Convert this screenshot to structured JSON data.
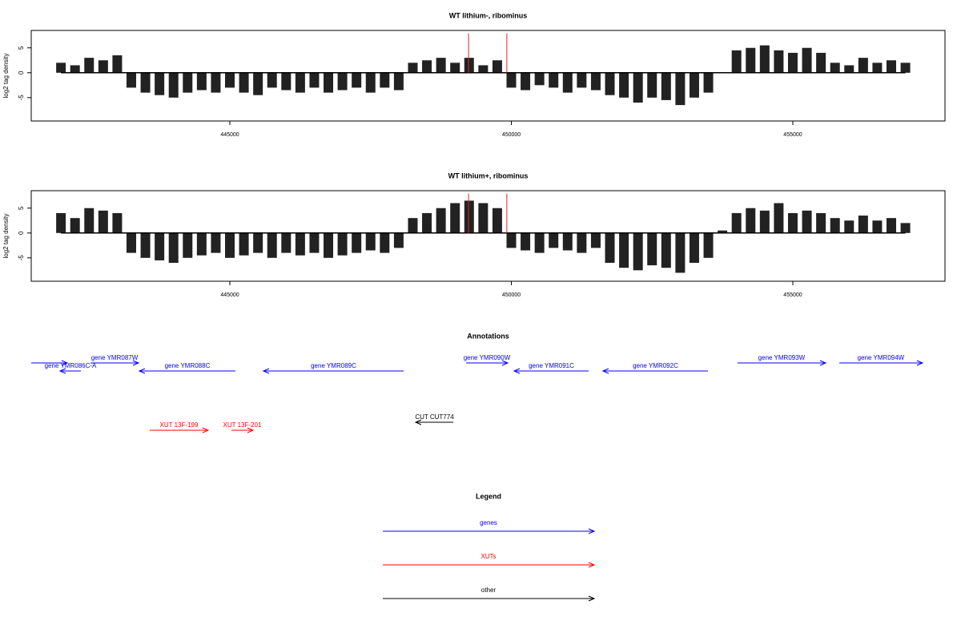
{
  "chart_data": [
    {
      "type": "bar",
      "title": "WT lithium-, ribominus",
      "ylabel": "log2 tag density",
      "x": [
        442000,
        442250,
        442500,
        442750,
        443000,
        443250,
        443500,
        443750,
        444000,
        444250,
        444500,
        444750,
        445000,
        445250,
        445500,
        445750,
        446000,
        446250,
        446500,
        446750,
        447000,
        447250,
        447500,
        447750,
        448000,
        448250,
        448500,
        448750,
        449000,
        449250,
        449500,
        449750,
        450000,
        450250,
        450500,
        450750,
        451000,
        451250,
        451500,
        451750,
        452000,
        452250,
        452500,
        452750,
        453000,
        453250,
        453500,
        453750,
        454000,
        454250,
        454500,
        454750,
        455000,
        455250,
        455500,
        455750,
        456000,
        456250,
        456500,
        456750,
        457000
      ],
      "values": [
        2,
        1.5,
        3,
        2.5,
        3.5,
        -3,
        -4,
        -4.5,
        -5,
        -4,
        -3.5,
        -4,
        -3,
        -4,
        -4.5,
        -3,
        -3.5,
        -4,
        -3,
        -4,
        -3.5,
        -3,
        -4,
        -3,
        -3.5,
        2,
        2.5,
        3,
        2,
        3,
        1.5,
        2.5,
        -3,
        -3.5,
        -2.5,
        -3,
        -4,
        -3,
        -3.5,
        -4.5,
        -5,
        -6,
        -5,
        -5.5,
        -6.5,
        -5,
        -4,
        0,
        4.5,
        5,
        5.5,
        4.5,
        4,
        5,
        4,
        2,
        1.5,
        3,
        2,
        2.5,
        2
      ],
      "color": "#222222",
      "highlight_x": [
        449240,
        449920
      ],
      "highlight_top": 7.9,
      "highlight_color": "#e02020",
      "xlim": [
        441472,
        457703
      ],
      "ylim": [
        -9.7,
        8.5
      ],
      "xticks": [
        445000,
        450000,
        455000
      ],
      "yticks": [
        -5,
        0,
        5
      ]
    },
    {
      "type": "bar",
      "title": "WT lithium+, ribominus",
      "ylabel": "log2 tag density",
      "x": [
        442000,
        442250,
        442500,
        442750,
        443000,
        443250,
        443500,
        443750,
        444000,
        444250,
        444500,
        444750,
        445000,
        445250,
        445500,
        445750,
        446000,
        446250,
        446500,
        446750,
        447000,
        447250,
        447500,
        447750,
        448000,
        448250,
        448500,
        448750,
        449000,
        449250,
        449500,
        449750,
        450000,
        450250,
        450500,
        450750,
        451000,
        451250,
        451500,
        451750,
        452000,
        452250,
        452500,
        452750,
        453000,
        453250,
        453500,
        453750,
        454000,
        454250,
        454500,
        454750,
        455000,
        455250,
        455500,
        455750,
        456000,
        456250,
        456500,
        456750,
        457000
      ],
      "values": [
        4,
        3,
        5,
        4.5,
        4,
        -4,
        -5,
        -5.5,
        -6,
        -5,
        -4.5,
        -4,
        -5,
        -4.5,
        -4,
        -5,
        -4,
        -4.5,
        -4,
        -5,
        -4.5,
        -4,
        -3.5,
        -4,
        -3,
        3,
        4,
        5,
        6,
        6.5,
        6,
        5,
        -3,
        -3.5,
        -4,
        -3,
        -3.5,
        -4,
        -3,
        -6,
        -7,
        -7.5,
        -6.5,
        -7,
        -8,
        -6,
        -5,
        0.5,
        4,
        5,
        4.5,
        6,
        4,
        4.5,
        4,
        3,
        2.5,
        3.5,
        2.5,
        3,
        2
      ],
      "color": "#222222",
      "highlight_x": [
        449240,
        449920
      ],
      "highlight_top": 7.9,
      "highlight_color": "#e02020",
      "xlim": [
        441472,
        457703
      ],
      "ylim": [
        -9.7,
        8.5
      ],
      "xticks": [
        445000,
        450000,
        455000
      ],
      "yticks": [
        -5,
        0,
        5
      ]
    }
  ],
  "annotations": {
    "title": "Annotations",
    "xlim": [
      441472,
      457703
    ],
    "features": [
      {
        "kind": "gene",
        "start": 441472,
        "end": 442112,
        "strand": "+",
        "color": "#0000ff"
      },
      {
        "kind": "gene",
        "name": "gene YMR086C-A",
        "start": 441984,
        "end": 442354,
        "strand": "-",
        "color": "#0000ff"
      },
      {
        "kind": "gene",
        "name": "gene YMR087W",
        "start": 442525,
        "end": 443378,
        "strand": "+",
        "color": "#0000ff"
      },
      {
        "kind": "gene",
        "name": "gene YMR088C",
        "start": 443392,
        "end": 445099,
        "strand": "-",
        "color": "#0000ff"
      },
      {
        "kind": "gene",
        "name": "gene YMR089C",
        "start": 445597,
        "end": 448087,
        "strand": "-",
        "color": "#0000ff"
      },
      {
        "kind": "gene",
        "name": "gene YMR090W",
        "start": 449196,
        "end": 449936,
        "strand": "+",
        "color": "#0000ff"
      },
      {
        "kind": "gene",
        "name": "gene YMR091C",
        "start": 450050,
        "end": 451373,
        "strand": "-",
        "color": "#0000ff"
      },
      {
        "kind": "gene",
        "name": "gene YMR092C",
        "start": 451628,
        "end": 453492,
        "strand": "-",
        "color": "#0000ff"
      },
      {
        "kind": "gene",
        "name": "gene YMR093W",
        "start": 454018,
        "end": 455583,
        "strand": "+",
        "color": "#0000ff"
      },
      {
        "kind": "gene",
        "name": "gene YMR094W",
        "start": 455825,
        "end": 457304,
        "strand": "+",
        "color": "#0000ff"
      },
      {
        "kind": "other",
        "name": "CUT CUT774",
        "start": 448300,
        "end": 448969,
        "strand": "-",
        "color": "#000000"
      },
      {
        "kind": "xut",
        "name": "XUT 13F-199",
        "start": 443577,
        "end": 444616,
        "strand": "+",
        "color": "#ff0000"
      },
      {
        "kind": "xut",
        "name": "XUT 13F-201",
        "start": 445028,
        "end": 445412,
        "strand": "+",
        "color": "#ff0000"
      }
    ]
  },
  "legend": {
    "title": "Legend",
    "entries": [
      {
        "label": "genes",
        "color": "#0000ff"
      },
      {
        "label": "XUTs",
        "color": "#ff0000"
      },
      {
        "label": "other",
        "color": "#000000"
      }
    ]
  }
}
